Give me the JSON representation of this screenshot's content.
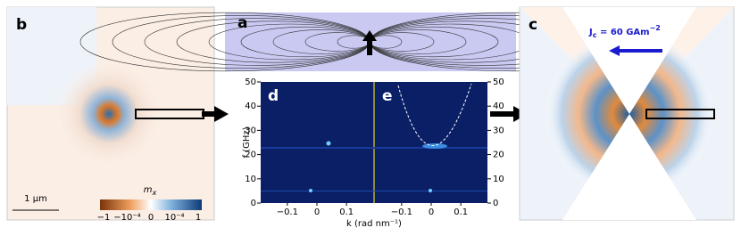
{
  "panel_labels": {
    "a": "a",
    "b": "b",
    "c": "c",
    "d": "d",
    "e": "e"
  },
  "scale_bar": "1 μm",
  "colorbar": {
    "symbol": "m",
    "subscript": "x",
    "labels": [
      "−1",
      "−10⁻⁴",
      "0",
      "10⁻⁴",
      "1"
    ]
  },
  "current": {
    "symbol": "J",
    "subscript": "c",
    "text": " = 60 GAm",
    "exponent": "−2"
  },
  "spectrum": {
    "ylabel": "f (GHz)",
    "xlabel": "k (rad nm⁻¹)",
    "ylim": [
      0,
      50
    ],
    "yticks": [
      0,
      10,
      20,
      30,
      40,
      50
    ],
    "xlim": [
      -0.19,
      0.19
    ],
    "xticks": [
      {
        "value": -0.1,
        "label": "−0.1"
      },
      0,
      0.1
    ]
  }
}
